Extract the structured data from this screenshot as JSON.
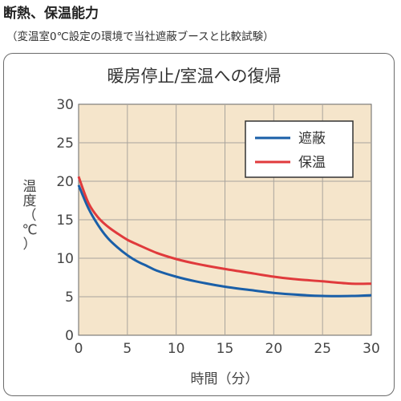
{
  "header": {
    "title": "断熱、保温能力",
    "subtitle": "（変温室0℃設定の環境で当社遮蔽ブースと比較試験）"
  },
  "chart_data": {
    "type": "line",
    "title": "暖房停止/室温への復帰",
    "xlabel": "時間（分）",
    "ylabel_chars": [
      "温",
      "度",
      "（",
      "℃",
      "）"
    ],
    "xlim": [
      0,
      30
    ],
    "ylim": [
      0,
      30
    ],
    "xticks": [
      0,
      5,
      10,
      15,
      20,
      25,
      30
    ],
    "yticks": [
      0,
      5,
      10,
      15,
      20,
      25,
      30
    ],
    "grid": true,
    "legend_position": "top-right",
    "background_color": "#f5e5cb",
    "series": [
      {
        "name": "遮蔽",
        "color": "#1a5fa8",
        "x": [
          0,
          1,
          2,
          3,
          4,
          5,
          6,
          7,
          8,
          10,
          12,
          15,
          18,
          20,
          22,
          25,
          28,
          30
        ],
        "y": [
          19.5,
          16.5,
          14.3,
          12.6,
          11.4,
          10.4,
          9.6,
          9.0,
          8.4,
          7.6,
          7.0,
          6.3,
          5.8,
          5.5,
          5.3,
          5.1,
          5.1,
          5.2
        ]
      },
      {
        "name": "保温",
        "color": "#e03a3c",
        "x": [
          0,
          1,
          2,
          3,
          4,
          5,
          6,
          8,
          10,
          12,
          15,
          18,
          20,
          22,
          25,
          28,
          30
        ],
        "y": [
          20.6,
          17.2,
          15.3,
          14.1,
          13.2,
          12.4,
          11.8,
          10.7,
          9.9,
          9.3,
          8.6,
          8.0,
          7.6,
          7.3,
          7.0,
          6.7,
          6.7
        ]
      }
    ]
  }
}
